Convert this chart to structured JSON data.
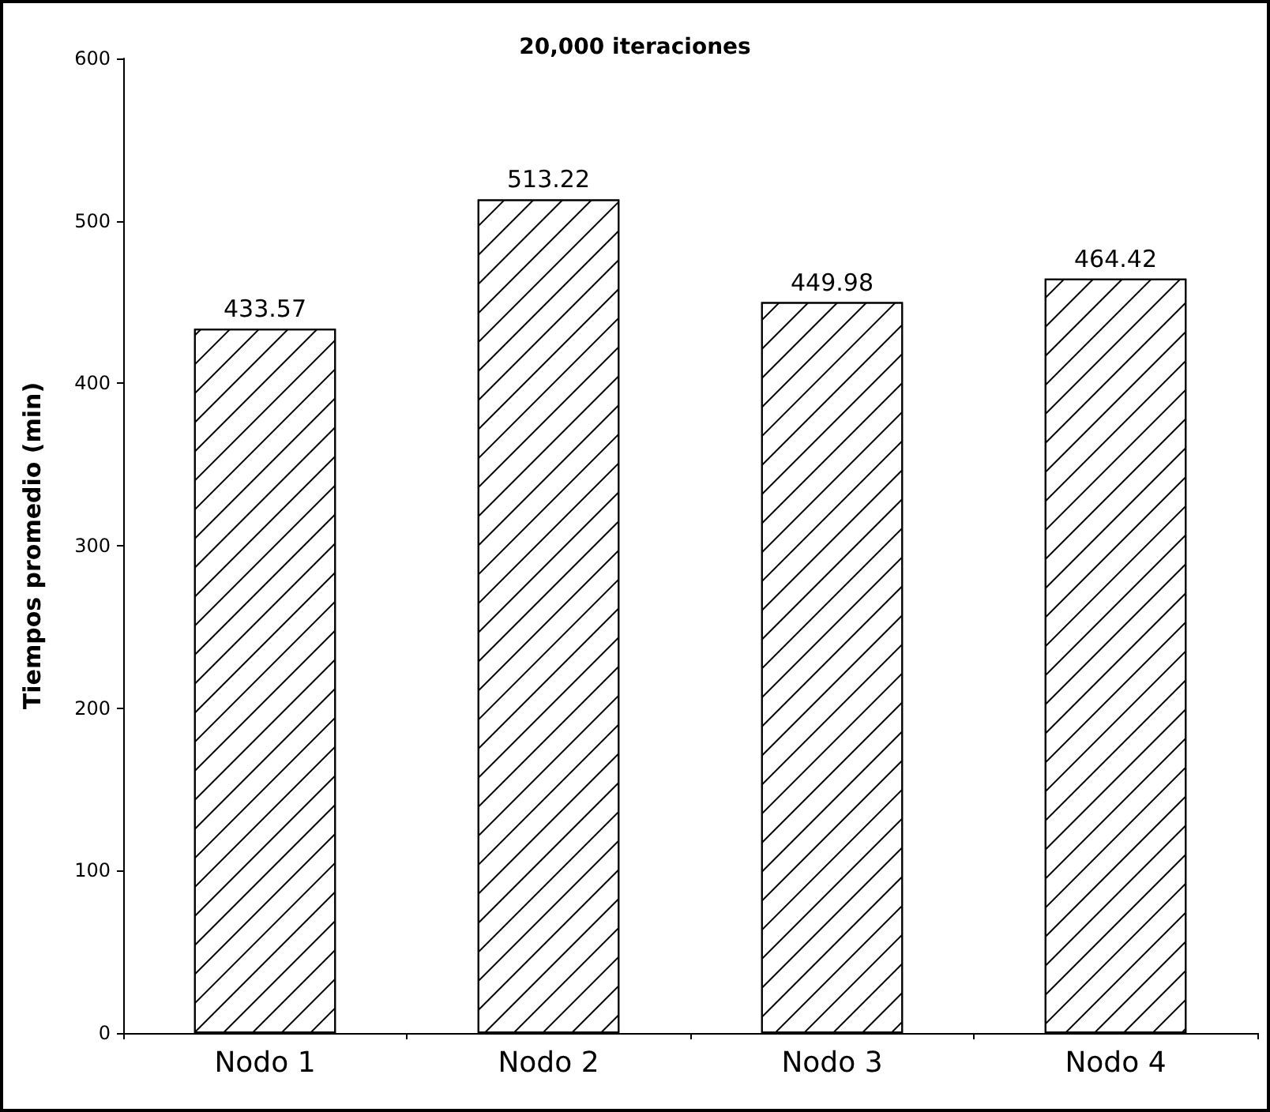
{
  "chart_data": {
    "type": "bar",
    "title": "20,000 iteraciones",
    "ylabel": "Tiempos promedio (min)",
    "categories": [
      "Nodo 1",
      "Nodo 2",
      "Nodo 3",
      "Nodo 4"
    ],
    "values": [
      433.57,
      513.22,
      449.98,
      464.42
    ],
    "color": "#ffffff",
    "ylim": [
      0,
      600
    ],
    "yticks": [
      0,
      100,
      200,
      300,
      400,
      500,
      600
    ],
    "grid": false,
    "data_labels": true
  }
}
